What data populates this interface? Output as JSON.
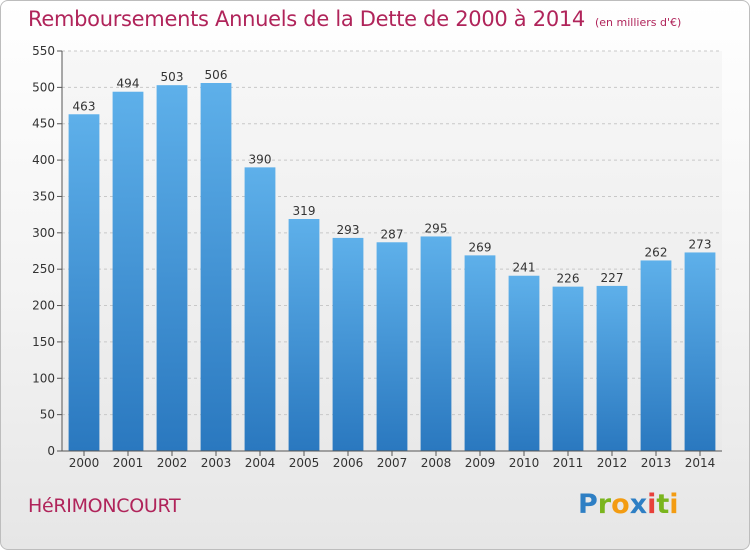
{
  "title": "Remboursements Annuels de la Dette de 2000 à 2014",
  "unit_note": "(en milliers d'€)",
  "city": "HéRIMONCOURT",
  "logo": {
    "letters": [
      "P",
      "r",
      "o",
      "x",
      "i",
      "t",
      "i"
    ],
    "colors": [
      "#2e7fc4",
      "#7ab51d",
      "#f39c12",
      "#2e7fc4",
      "#e8403a",
      "#7ab51d",
      "#f39c12"
    ]
  },
  "colors": {
    "bar_top": "#5eb0ea",
    "bar_bottom": "#2a78bf",
    "title": "#b0245a",
    "grid": "#c8c8c8"
  },
  "chart_data": {
    "type": "bar",
    "title": "Remboursements Annuels de la Dette de 2000 à 2014",
    "xlabel": "",
    "ylabel": "",
    "ylim": [
      0,
      550
    ],
    "yticks": [
      0,
      50,
      100,
      150,
      200,
      250,
      300,
      350,
      400,
      450,
      500,
      550
    ],
    "categories": [
      "2000",
      "2001",
      "2002",
      "2003",
      "2004",
      "2005",
      "2006",
      "2007",
      "2008",
      "2009",
      "2010",
      "2011",
      "2012",
      "2013",
      "2014"
    ],
    "values": [
      463,
      494,
      503,
      506,
      390,
      319,
      293,
      287,
      295,
      269,
      241,
      226,
      227,
      262,
      273
    ],
    "grid": true,
    "legend": "none"
  }
}
